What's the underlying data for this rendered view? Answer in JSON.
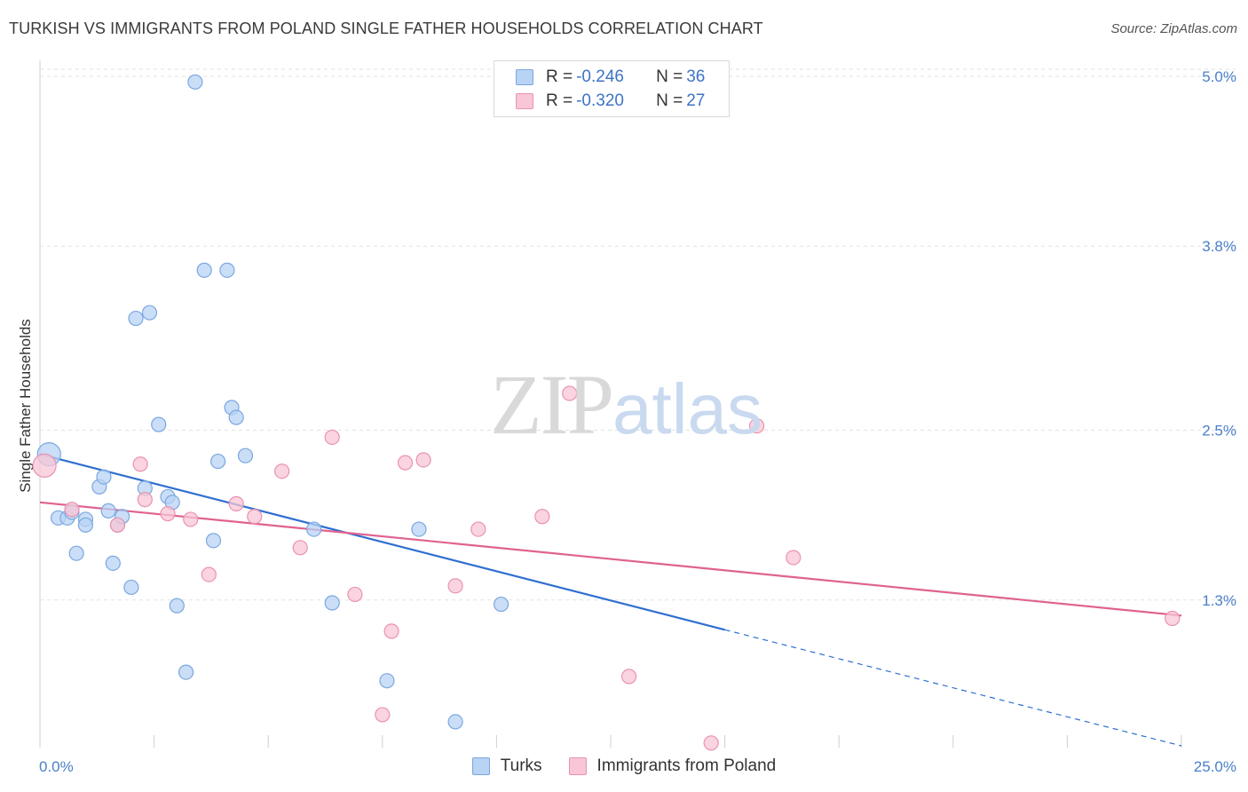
{
  "title": "TURKISH VS IMMIGRANTS FROM POLAND SINGLE FATHER HOUSEHOLDS CORRELATION CHART",
  "source": "Source: ZipAtlas.com",
  "watermark": {
    "zip": "ZIP",
    "atlas": "atlas"
  },
  "legend": {
    "rows": [
      {
        "r_label": "R = ",
        "r_value": "-0.246",
        "n_label": "N = ",
        "n_value": "36"
      },
      {
        "r_label": "R = ",
        "r_value": "-0.320",
        "n_label": "N = ",
        "n_value": "27"
      }
    ]
  },
  "colors": {
    "turks_fill": "#b8d3f4",
    "turks_stroke": "#7aa7e0",
    "turks_line": "#2f6fd0",
    "poland_fill": "#f8c6d6",
    "poland_stroke": "#ea92b0",
    "poland_line": "#e0628f",
    "tick_text": "#4a7fc9",
    "grid": "#e2e2e2"
  },
  "chart_data": {
    "type": "scatter",
    "xlabel": "",
    "ylabel": "Single Father Households",
    "x_ticks": [
      "0.0%",
      "25.0%"
    ],
    "y_ticks": [
      "1.3%",
      "2.5%",
      "3.8%",
      "5.0%"
    ],
    "x_domain": [
      0,
      25
    ],
    "y_domain": [
      0.27,
      5.1
    ],
    "grid": true,
    "series": [
      {
        "name": "Turks",
        "points": [
          [
            0.2,
            2.33
          ],
          [
            0.4,
            1.88
          ],
          [
            0.6,
            1.88
          ],
          [
            0.7,
            1.92
          ],
          [
            1.0,
            1.87
          ],
          [
            1.0,
            1.83
          ],
          [
            0.8,
            1.63
          ],
          [
            1.3,
            2.1
          ],
          [
            1.4,
            2.17
          ],
          [
            1.5,
            1.93
          ],
          [
            1.7,
            1.83
          ],
          [
            1.6,
            1.56
          ],
          [
            1.8,
            1.89
          ],
          [
            2.0,
            1.39
          ],
          [
            2.1,
            3.29
          ],
          [
            2.4,
            3.33
          ],
          [
            2.3,
            2.09
          ],
          [
            2.6,
            2.54
          ],
          [
            2.8,
            2.03
          ],
          [
            2.9,
            1.99
          ],
          [
            3.0,
            1.26
          ],
          [
            3.2,
            0.79
          ],
          [
            3.4,
            4.96
          ],
          [
            3.6,
            3.63
          ],
          [
            3.8,
            1.72
          ],
          [
            3.9,
            2.28
          ],
          [
            4.1,
            3.63
          ],
          [
            4.2,
            2.66
          ],
          [
            4.3,
            2.59
          ],
          [
            4.5,
            2.32
          ],
          [
            6.0,
            1.8
          ],
          [
            6.4,
            1.28
          ],
          [
            7.6,
            0.73
          ],
          [
            8.3,
            1.8
          ],
          [
            9.1,
            0.44
          ],
          [
            10.1,
            1.27
          ]
        ]
      },
      {
        "name": "Immigrants from Poland",
        "points": [
          [
            0.1,
            2.25
          ],
          [
            0.7,
            1.94
          ],
          [
            1.7,
            1.83
          ],
          [
            2.3,
            2.01
          ],
          [
            2.2,
            2.26
          ],
          [
            2.8,
            1.91
          ],
          [
            3.3,
            1.87
          ],
          [
            3.7,
            1.48
          ],
          [
            4.3,
            1.98
          ],
          [
            4.7,
            1.89
          ],
          [
            5.3,
            2.21
          ],
          [
            5.7,
            1.67
          ],
          [
            6.4,
            2.45
          ],
          [
            6.9,
            1.34
          ],
          [
            7.7,
            1.08
          ],
          [
            7.5,
            0.49
          ],
          [
            8.0,
            2.27
          ],
          [
            8.4,
            2.29
          ],
          [
            9.1,
            1.4
          ],
          [
            9.6,
            1.8
          ],
          [
            11.0,
            1.89
          ],
          [
            11.6,
            2.76
          ],
          [
            12.9,
            0.76
          ],
          [
            14.7,
            0.29
          ],
          [
            15.7,
            2.53
          ],
          [
            16.5,
            1.6
          ],
          [
            24.8,
            1.17
          ]
        ]
      }
    ],
    "trend_lines": [
      {
        "series": "Turks",
        "x_start": 0,
        "y_start": 2.33,
        "x_end": 15,
        "y_end": 1.09,
        "dashed_to_x": 25,
        "dashed_to_y": 0.27
      },
      {
        "series": "Immigrants from Poland",
        "x_start": 0,
        "y_start": 1.99,
        "x_end": 25,
        "y_end": 1.19
      }
    ]
  }
}
